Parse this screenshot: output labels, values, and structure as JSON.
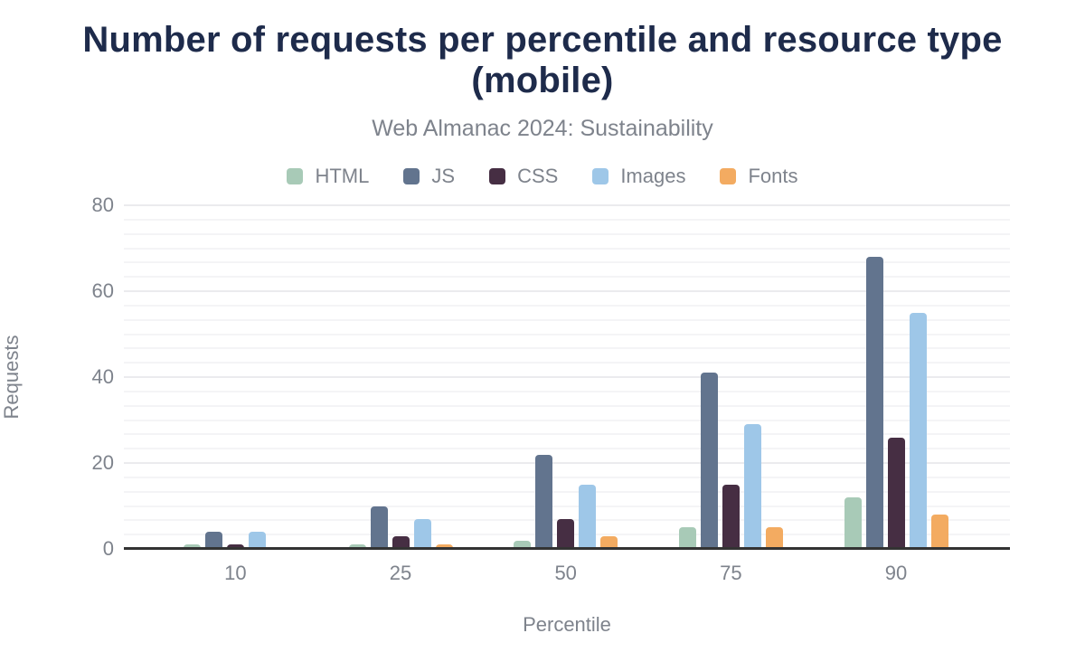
{
  "title": "Number of requests per percentile and resource type (mobile)",
  "subtitle": "Web Almanac 2024: Sustainability",
  "chart_data": {
    "type": "bar",
    "title": "Number of requests per percentile and resource type (mobile)",
    "subtitle": "Web Almanac 2024: Sustainability",
    "categories": [
      "10",
      "25",
      "50",
      "75",
      "90"
    ],
    "series": [
      {
        "name": "HTML",
        "color": "#a8cab7",
        "values": [
          1,
          1,
          2,
          5,
          12
        ]
      },
      {
        "name": "JS",
        "color": "#62748e",
        "values": [
          4,
          10,
          22,
          41,
          68
        ]
      },
      {
        "name": "CSS",
        "color": "#462e43",
        "values": [
          1,
          3,
          7,
          15,
          26
        ]
      },
      {
        "name": "Images",
        "color": "#9ec7e8",
        "values": [
          4,
          7,
          15,
          29,
          55
        ]
      },
      {
        "name": "Fonts",
        "color": "#f3ab61",
        "values": [
          0,
          1,
          3,
          5,
          8
        ]
      }
    ],
    "xlabel": "Percentile",
    "ylabel": "Requests",
    "ylim": [
      0,
      80
    ],
    "yticks": [
      0,
      20,
      40,
      60,
      80
    ],
    "legend_position": "top",
    "grid": "horizontal-major-and-minor"
  },
  "colors": {
    "title": "#1e2b4b",
    "secondary_text": "#7e838c",
    "axis_line": "#333333",
    "major_grid": "#ebebee",
    "minor_grid": "#f4f4f6",
    "background": "#ffffff"
  }
}
